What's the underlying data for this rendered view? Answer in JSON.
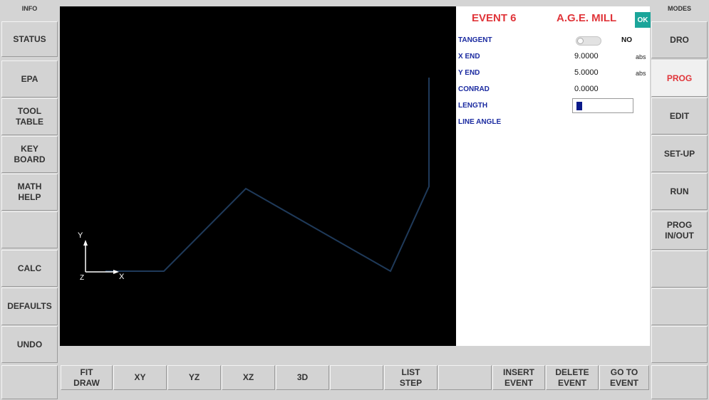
{
  "left_column": {
    "header": "INFO",
    "buttons": [
      {
        "name": "status",
        "label": "STATUS"
      },
      {
        "name": "epa",
        "label": "EPA"
      },
      {
        "name": "tool-table",
        "label": "TOOL\nTABLE"
      },
      {
        "name": "keyboard",
        "label": "KEY\nBOARD"
      },
      {
        "name": "math-help",
        "label": "MATH\nHELP"
      },
      {
        "name": "blank",
        "label": ""
      },
      {
        "name": "calc",
        "label": "CALC"
      },
      {
        "name": "defaults",
        "label": "DEFAULTS"
      },
      {
        "name": "undo",
        "label": "UNDO"
      }
    ]
  },
  "right_column": {
    "header": "MODES",
    "buttons": [
      {
        "name": "dro",
        "label": "DRO",
        "active": false
      },
      {
        "name": "prog",
        "label": "PROG",
        "active": true
      },
      {
        "name": "edit",
        "label": "EDIT",
        "active": false
      },
      {
        "name": "setup",
        "label": "SET-UP",
        "active": false
      },
      {
        "name": "run",
        "label": "RUN",
        "active": false
      },
      {
        "name": "prog-inout",
        "label": "PROG\nIN/OUT",
        "active": false
      },
      {
        "name": "blank-1",
        "label": "",
        "active": false
      },
      {
        "name": "blank-2",
        "label": "",
        "active": false
      },
      {
        "name": "blank-3",
        "label": "",
        "active": false
      }
    ]
  },
  "panel": {
    "event_title": "EVENT 6",
    "mode_title": "A.G.E. MILL",
    "ok_label": "OK",
    "fields": {
      "tangent": {
        "label": "TANGENT",
        "value": "NO"
      },
      "x_end": {
        "label": "X END",
        "value": "9.0000",
        "unit": "abs"
      },
      "y_end": {
        "label": "Y END",
        "value": "5.0000",
        "unit": "abs"
      },
      "conrad": {
        "label": "CONRAD",
        "value": "0.0000"
      },
      "length": {
        "label": "LENGTH",
        "value": ""
      },
      "line_angle": {
        "label": "LINE ANGLE"
      }
    }
  },
  "canvas": {
    "axis_y_label": "Y",
    "axis_x_label": "X",
    "axis_z_label": "Z",
    "toolpath_color": "#1f3a5a",
    "axis_color": "#ffffff"
  },
  "bottom_bar": {
    "buttons": [
      {
        "name": "fit-draw",
        "label": "FIT\nDRAW"
      },
      {
        "name": "xy",
        "label": "XY"
      },
      {
        "name": "yz",
        "label": "YZ"
      },
      {
        "name": "xz",
        "label": "XZ"
      },
      {
        "name": "3d",
        "label": "3D"
      },
      {
        "name": "blank-1",
        "label": ""
      },
      {
        "name": "list-step",
        "label": "LIST\nSTEP"
      },
      {
        "name": "blank-2",
        "label": ""
      },
      {
        "name": "insert-event",
        "label": "INSERT\nEVENT"
      },
      {
        "name": "delete-event",
        "label": "DELETE\nEVENT"
      },
      {
        "name": "go-to-event",
        "label": "GO TO\nEVENT"
      }
    ]
  }
}
